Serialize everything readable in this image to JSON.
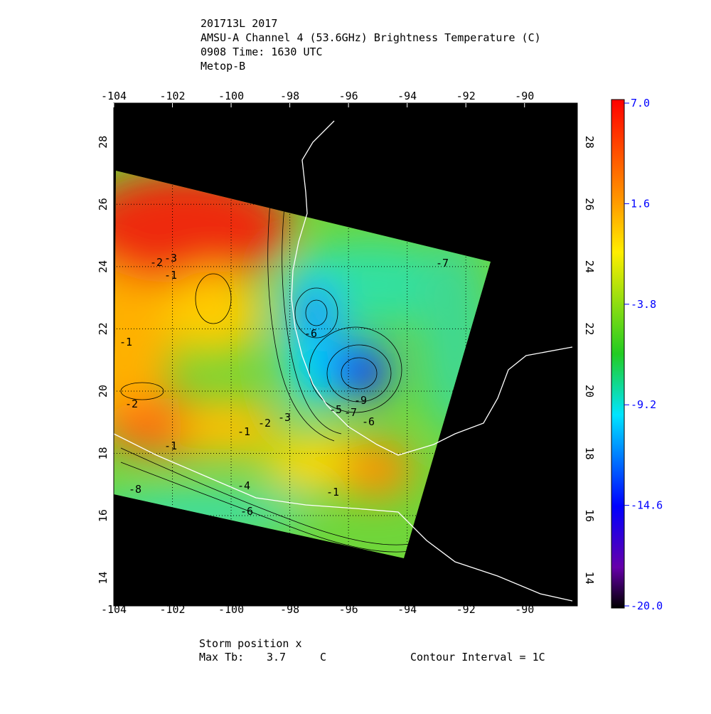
{
  "header": {
    "lines": [
      "201713L 2017",
      "AMSU-A Channel 4 (53.6GHz) Brightness Temperature (C)",
      "0908 Time: 1630 UTC",
      "Metop-B"
    ]
  },
  "map": {
    "xlim": [
      -104,
      -88.2
    ],
    "ylim": [
      13.1,
      29.25
    ],
    "lon_ticks": [
      {
        "value": -104,
        "label": "-104"
      },
      {
        "value": -102,
        "label": "-102"
      },
      {
        "value": -100,
        "label": "-100"
      },
      {
        "value": -98,
        "label": "-98"
      },
      {
        "value": -96,
        "label": "-96"
      },
      {
        "value": -94,
        "label": "-94"
      },
      {
        "value": -92,
        "label": "-92"
      },
      {
        "value": -90,
        "label": "-90"
      }
    ],
    "lat_ticks": [
      14,
      16,
      18,
      20,
      22,
      24,
      26,
      28
    ],
    "contour_labels": [
      "-3",
      "-2",
      "-1",
      "-1",
      "-6",
      "-9",
      "-7",
      "-6",
      "-5",
      "-2",
      "-1",
      "-2",
      "-3",
      "-1",
      "-4",
      "-8",
      "-6",
      "-1",
      "-7"
    ]
  },
  "colorbar": {
    "clim": [
      -20,
      7
    ],
    "ticks": [
      {
        "value": 7,
        "label": "7.0"
      },
      {
        "value": 1.6,
        "label": "1.6"
      },
      {
        "value": -3.8,
        "label": "-3.8"
      },
      {
        "value": -9.2,
        "label": "-9.2"
      },
      {
        "value": -14.6,
        "label": "-14.6"
      },
      {
        "value": -20,
        "label": "-20.0"
      }
    ]
  },
  "footer": {
    "storm_position": "Storm position x",
    "max_tb_label": "Max Tb:",
    "max_tb_value": "3.7",
    "max_tb_unit": "C",
    "contour_interval": "Contour Interval = 1C"
  }
}
